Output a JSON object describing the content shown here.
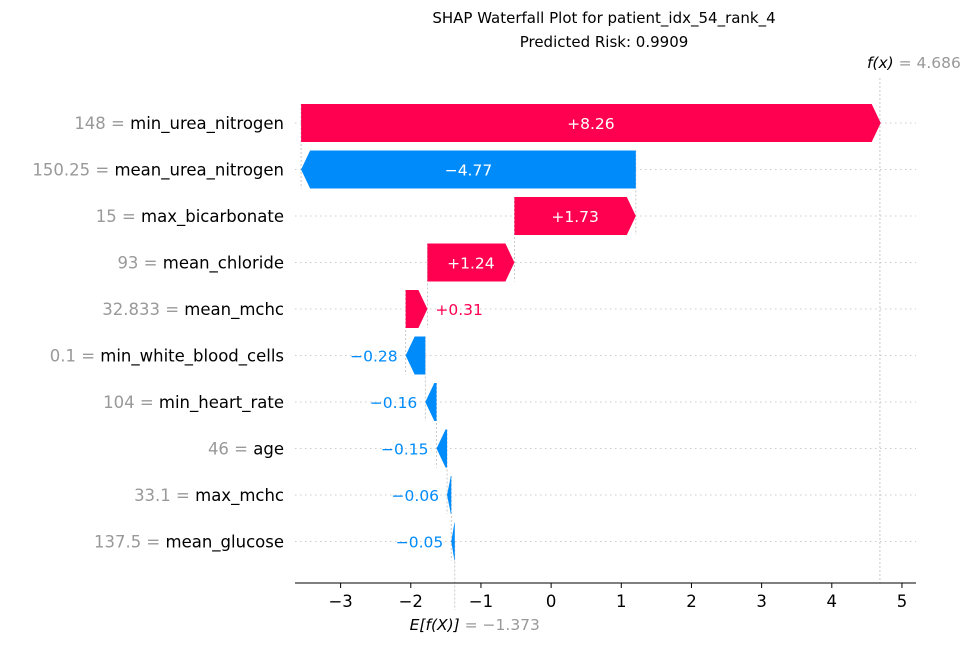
{
  "chart_data": {
    "type": "waterfall",
    "title": "SHAP Waterfall Plot for patient_idx_54_rank_4",
    "subtitle": "Predicted Risk: 0.9909",
    "fx_prefix": "f(x)",
    "fx_value_text": "= 4.686",
    "fx_value": 4.686,
    "base_prefix": "E[f(X)]",
    "base_value_text": "= −1.373",
    "base_value": -1.373,
    "xlim": [
      -3.65,
      5.2
    ],
    "xticks": [
      -3,
      -2,
      -1,
      0,
      1,
      2,
      3,
      4,
      5
    ],
    "xtick_labels": [
      "−3",
      "−2",
      "−1",
      "0",
      "1",
      "2",
      "3",
      "4",
      "5"
    ],
    "features": [
      {
        "value": "148",
        "name": "min_urea_nitrogen",
        "shap": 8.26,
        "shap_label": "+8.26"
      },
      {
        "value": "150.25",
        "name": "mean_urea_nitrogen",
        "shap": -4.77,
        "shap_label": "−4.77"
      },
      {
        "value": "15",
        "name": "max_bicarbonate",
        "shap": 1.73,
        "shap_label": "+1.73"
      },
      {
        "value": "93",
        "name": "mean_chloride",
        "shap": 1.24,
        "shap_label": "+1.24"
      },
      {
        "value": "32.833",
        "name": "mean_mchc",
        "shap": 0.31,
        "shap_label": "+0.31"
      },
      {
        "value": "0.1",
        "name": "min_white_blood_cells",
        "shap": -0.28,
        "shap_label": "−0.28"
      },
      {
        "value": "104",
        "name": "min_heart_rate",
        "shap": -0.16,
        "shap_label": "−0.16"
      },
      {
        "value": "46",
        "name": "age",
        "shap": -0.15,
        "shap_label": "−0.15"
      },
      {
        "value": "33.1",
        "name": "max_mchc",
        "shap": -0.06,
        "shap_label": "−0.06"
      },
      {
        "value": "137.5",
        "name": "mean_glucose",
        "shap": -0.05,
        "shap_label": "−0.05"
      }
    ],
    "colors": {
      "positive": "#ff0051",
      "negative": "#008bfb",
      "text_gray": "#999999",
      "gridline": "#cccccc"
    }
  }
}
